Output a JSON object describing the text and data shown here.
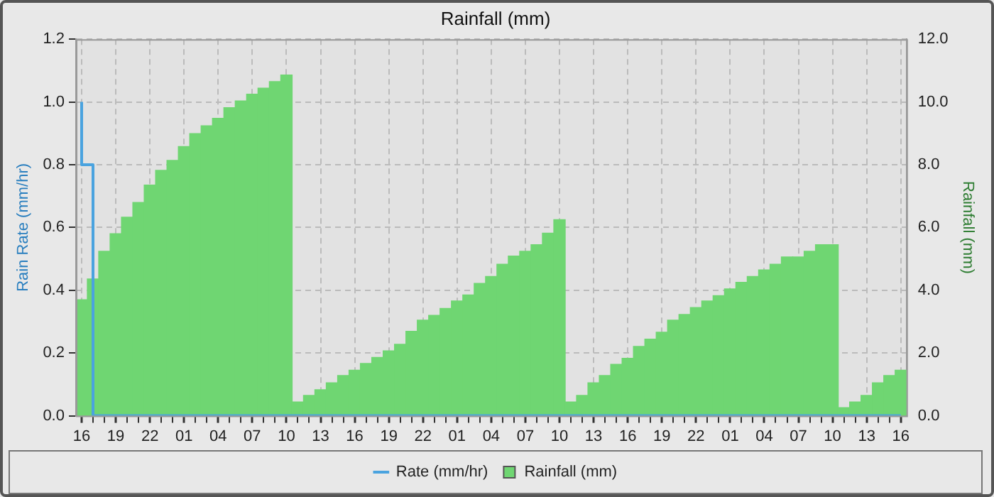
{
  "chart_data": {
    "type": "bar",
    "title": "Rainfall (mm)",
    "ylabel": "Rain Rate (mm/hr)",
    "y2label": "Rainfall (mm)",
    "categories": [
      "16",
      null,
      null,
      "19",
      null,
      null,
      "22",
      null,
      null,
      "01",
      null,
      null,
      "04",
      null,
      null,
      "07",
      null,
      null,
      "10",
      null,
      null,
      "13",
      null,
      null,
      "16",
      null,
      null,
      "19",
      null,
      null,
      "22",
      null,
      null,
      "01",
      null,
      null,
      "04",
      null,
      null,
      "07",
      null,
      null,
      "10",
      null,
      null,
      "13",
      null,
      null,
      "16",
      null,
      null,
      "19",
      null,
      null,
      "22",
      null,
      null,
      "01",
      null,
      null,
      "04",
      null,
      null,
      "07",
      null,
      null,
      "10",
      null,
      null,
      "13",
      null,
      null,
      "16"
    ],
    "ylim": [
      0,
      1.2
    ],
    "yticks": [
      {
        "value": 0,
        "label": "0.0"
      },
      {
        "value": 0.2,
        "label": "0.2"
      },
      {
        "value": 0.4,
        "label": "0.4"
      },
      {
        "value": 0.6,
        "label": "0.6"
      },
      {
        "value": 0.8,
        "label": "0.8"
      },
      {
        "value": 1,
        "label": "1.0"
      },
      {
        "value": 1.2,
        "label": "1.2"
      }
    ],
    "y2lim": [
      0,
      12
    ],
    "y2ticks": [
      {
        "value": 0,
        "label": "0.0"
      },
      {
        "value": 2,
        "label": "2.0"
      },
      {
        "value": 4,
        "label": "4.0"
      },
      {
        "value": 6,
        "label": "6.0"
      },
      {
        "value": 8,
        "label": "8.0"
      },
      {
        "value": 10,
        "label": "10.0"
      },
      {
        "value": 12,
        "label": "12.0"
      }
    ],
    "grid": true,
    "legend": "bottom",
    "marker": "none",
    "series": [
      {
        "name": "Rate (mm/hr)",
        "type": "step",
        "color": "#4aa3df",
        "values": [
          1.0,
          0.8,
          0,
          0,
          0,
          0,
          0,
          0,
          0,
          0,
          0,
          0,
          0,
          0,
          0,
          0,
          0,
          0,
          0,
          0,
          0,
          0,
          0,
          0,
          0,
          0,
          0,
          0,
          0,
          0,
          0,
          0,
          0,
          0,
          0,
          0,
          0,
          0,
          0,
          0,
          0,
          0,
          0,
          0,
          0,
          0,
          0,
          0,
          0,
          0,
          0,
          0,
          0,
          0,
          0,
          0,
          0,
          0,
          0,
          0,
          0,
          0,
          0,
          0,
          0,
          0,
          0,
          0,
          0,
          0,
          0,
          0,
          0
        ]
      },
      {
        "name": "Rainfall (mm)",
        "axis": "y2",
        "color": "#6fd672",
        "values": [
          3.7,
          4.36,
          5.24,
          5.8,
          6.33,
          6.8,
          7.35,
          7.82,
          8.14,
          8.58,
          8.99,
          9.24,
          9.48,
          9.82,
          10.03,
          10.25,
          10.44,
          10.65,
          10.86,
          0.44,
          0.65,
          0.83,
          1.05,
          1.28,
          1.45,
          1.67,
          1.86,
          2.07,
          2.28,
          2.69,
          3.05,
          3.2,
          3.42,
          3.66,
          3.85,
          4.22,
          4.44,
          4.83,
          5.09,
          5.24,
          5.45,
          5.82,
          6.25,
          0.44,
          0.65,
          1.05,
          1.28,
          1.64,
          1.83,
          2.21,
          2.44,
          2.66,
          3.05,
          3.23,
          3.45,
          3.66,
          3.83,
          4.04,
          4.25,
          4.44,
          4.65,
          4.83,
          5.06,
          5.06,
          5.24,
          5.45,
          5.45,
          0.26,
          0.44,
          0.65,
          1.05,
          1.28,
          1.45
        ]
      }
    ]
  }
}
